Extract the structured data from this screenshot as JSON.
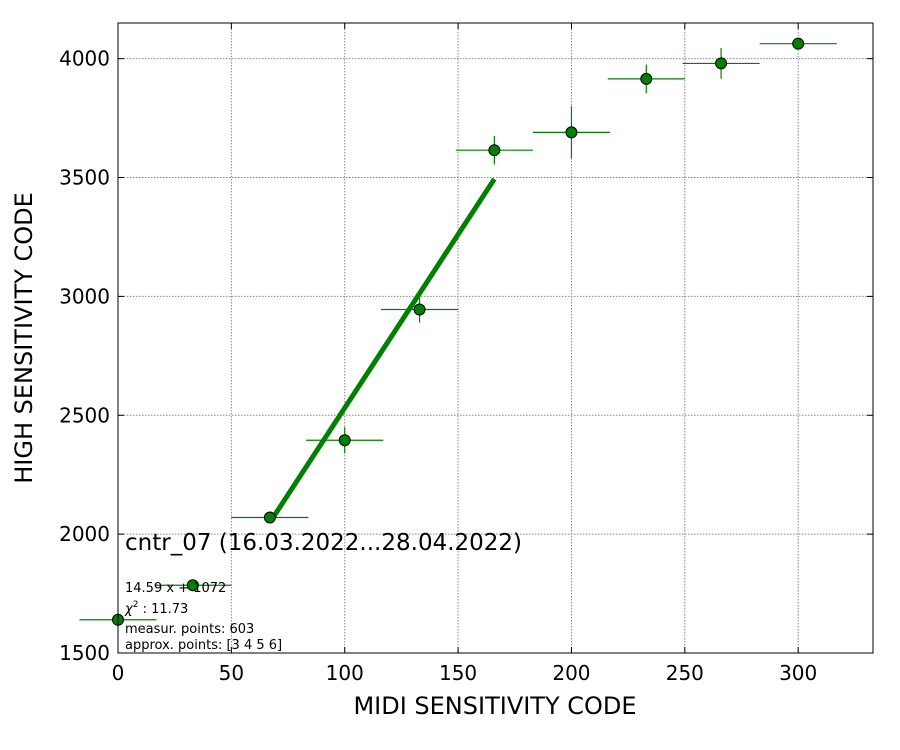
{
  "chart_data": {
    "type": "scatter",
    "title": "",
    "xlabel": "MIDI SENSITIVITY CODE",
    "ylabel": "HIGH SENSITIVITY CODE",
    "xlim": [
      0,
      333
    ],
    "ylim": [
      1500,
      4150
    ],
    "xticks": [
      0,
      50,
      100,
      150,
      200,
      250,
      300
    ],
    "yticks": [
      1500,
      2000,
      2500,
      3000,
      3500,
      4000
    ],
    "grid": true,
    "colors": {
      "marker": "#008000",
      "errorbar": "#008000",
      "fit": "#008000",
      "grid": "#888888"
    },
    "points": [
      {
        "x": 0,
        "y": 1640,
        "xerr": 17,
        "yerr": 0
      },
      {
        "x": 33,
        "y": 1785,
        "xerr": 17,
        "yerr": 0
      },
      {
        "x": 67,
        "y": 2070,
        "xerr": 17,
        "yerr": 0
      },
      {
        "x": 100,
        "y": 2395,
        "xerr": 17,
        "yerr": 55
      },
      {
        "x": 133,
        "y": 2945,
        "xerr": 17,
        "yerr": 55
      },
      {
        "x": 166,
        "y": 3615,
        "xerr": 17,
        "yerr": 60
      },
      {
        "x": 200,
        "y": 3690,
        "xerr": 17,
        "yerr": 110
      },
      {
        "x": 233,
        "y": 3915,
        "xerr": 17,
        "yerr": 60
      },
      {
        "x": 266,
        "y": 3980,
        "xerr": 17,
        "yerr": 65
      },
      {
        "x": 300,
        "y": 4063,
        "xerr": 17,
        "yerr": 0
      }
    ],
    "fit_line": {
      "slope": 14.59,
      "intercept": 1072,
      "x_start": 67,
      "x_end": 166
    },
    "annotations": {
      "title": "cntr_07 (16.03.2022...28.04.2022)",
      "fit_text": "14.59 x + 1072",
      "chi_label": "χ² : 11.73",
      "chi_value": "11.73",
      "measur_points": "measur. points: 603",
      "approx_points": "approx. points: [3 4 5 6]"
    }
  }
}
